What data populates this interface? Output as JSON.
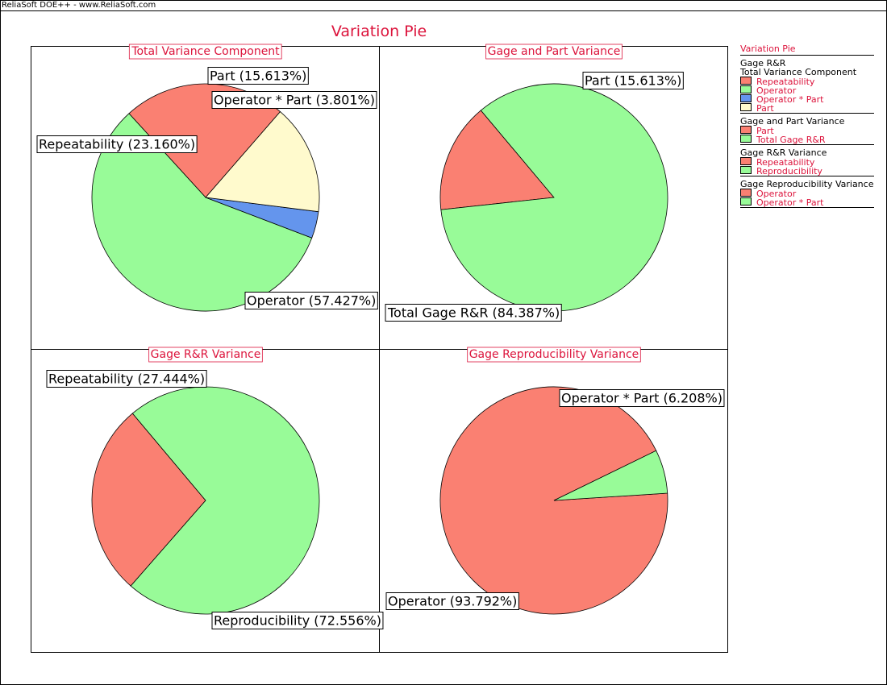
{
  "window": {
    "title": "ReliaSoft DOE++ - www.ReliaSoft.com"
  },
  "figure": {
    "title": "Variation Pie"
  },
  "colors": {
    "red": "#fa8072",
    "green": "#98fb98",
    "blue": "#6495ed",
    "cream": "#fffacd",
    "accent": "#dc143c"
  },
  "legend": {
    "title": "Variation Pie",
    "root": "Gage R&R",
    "groups": [
      {
        "title": "Total Variance Component",
        "items": [
          {
            "label": "Repeatability",
            "color": "#fa8072"
          },
          {
            "label": "Operator",
            "color": "#98fb98"
          },
          {
            "label": "Operator * Part",
            "color": "#6495ed"
          },
          {
            "label": "Part",
            "color": "#fffacd"
          }
        ]
      },
      {
        "title": "Gage and Part Variance",
        "items": [
          {
            "label": "Part",
            "color": "#fa8072"
          },
          {
            "label": "Total Gage R&R",
            "color": "#98fb98"
          }
        ]
      },
      {
        "title": "Gage R&R Variance",
        "items": [
          {
            "label": "Repeatability",
            "color": "#fa8072"
          },
          {
            "label": "Reproducibility",
            "color": "#98fb98"
          }
        ]
      },
      {
        "title": "Gage Reproducibility Variance",
        "items": [
          {
            "label": "Operator",
            "color": "#fa8072"
          },
          {
            "label": "Operator * Part",
            "color": "#98fb98"
          }
        ]
      }
    ]
  },
  "chart_data": [
    {
      "type": "pie",
      "title": "Total Variance Component",
      "slices": [
        {
          "label": "Repeatability",
          "value": 23.16,
          "display": "Repeatability (23.160%)",
          "color": "#fa8072"
        },
        {
          "label": "Operator",
          "value": 57.427,
          "display": "Operator (57.427%)",
          "color": "#98fb98"
        },
        {
          "label": "Operator * Part",
          "value": 3.801,
          "display": "Operator * Part (3.801%)",
          "color": "#6495ed"
        },
        {
          "label": "Part",
          "value": 15.613,
          "display": "Part (15.613%)",
          "color": "#fffacd"
        }
      ]
    },
    {
      "type": "pie",
      "title": "Gage and Part Variance",
      "slices": [
        {
          "label": "Part",
          "value": 15.613,
          "display": "Part (15.613%)",
          "color": "#fa8072"
        },
        {
          "label": "Total Gage R&R",
          "value": 84.387,
          "display": "Total Gage R&R (84.387%)",
          "color": "#98fb98"
        }
      ]
    },
    {
      "type": "pie",
      "title": "Gage R&R Variance",
      "slices": [
        {
          "label": "Repeatability",
          "value": 27.444,
          "display": "Repeatability (27.444%)",
          "color": "#fa8072"
        },
        {
          "label": "Reproducibility",
          "value": 72.556,
          "display": "Reproducibility (72.556%)",
          "color": "#98fb98"
        }
      ]
    },
    {
      "type": "pie",
      "title": "Gage Reproducibility Variance",
      "slices": [
        {
          "label": "Operator",
          "value": 93.792,
          "display": "Operator (93.792%)",
          "color": "#fa8072"
        },
        {
          "label": "Operator * Part",
          "value": 6.208,
          "display": "Operator * Part (6.208%)",
          "color": "#98fb98"
        }
      ]
    }
  ]
}
